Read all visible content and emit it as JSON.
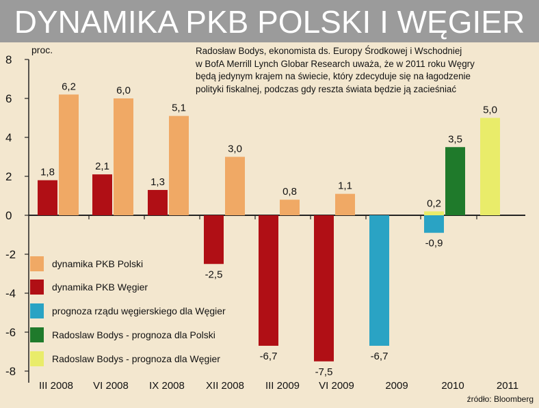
{
  "title": "DYNAMIKA PKB POLSKI I WĘGIER",
  "note": "Radosław Bodys, ekonomista ds. Europy Środkowej i Wschodniej\nw BofA Merrill Lynch Globar Research uważa, że w 2011 roku Węgry\nbędą jedynym krajem na świecie, który zdecyduje się na łagodzenie\npolityki fiskalnej, podczas gdy reszta świata będzie ją zacieśniać",
  "source": "źródło: Bloomberg",
  "colors": {
    "pl": "#f0a965",
    "hu": "#b00f15",
    "hu_gov": "#2aa3c4",
    "bodys_pl": "#1f7a2b",
    "bodys_hu": "#e9ec6a",
    "background": "#f3e7cf",
    "title_bar": "#9b9b9b"
  },
  "chart_data": {
    "type": "bar",
    "ylabel": "proc.",
    "ylim": [
      -8,
      8
    ],
    "yticks": [
      "8",
      "6",
      "4",
      "2",
      "0",
      "-2",
      "-4",
      "-6",
      "-8"
    ],
    "categories": [
      "III 2008",
      "VI 2008",
      "IX 2008",
      "XII 2008",
      "III 2009",
      "VI 2009",
      "2009",
      "2010",
      "2011"
    ],
    "series": [
      {
        "name": "dynamika PKB Polski",
        "key": "pl",
        "values": [
          6.2,
          6.0,
          5.1,
          3.0,
          0.8,
          1.1,
          null,
          null,
          null
        ],
        "labels": [
          "6,2",
          "6,0",
          "5,1",
          "3,0",
          "0,8",
          "1,1",
          "",
          "",
          ""
        ]
      },
      {
        "name": "dynamika PKB Węgier",
        "key": "hu",
        "values": [
          1.8,
          2.1,
          1.3,
          -2.5,
          -6.7,
          -7.5,
          null,
          null,
          null
        ],
        "labels": [
          "1,8",
          "2,1",
          "1,3",
          "-2,5",
          "-6,7",
          "-7,5",
          "",
          "",
          ""
        ]
      },
      {
        "name": "prognoza rządu węgierskiego dla Węgier",
        "key": "hu_gov",
        "values": [
          null,
          null,
          null,
          null,
          null,
          null,
          -6.7,
          -0.9,
          null
        ],
        "labels": [
          "",
          "",
          "",
          "",
          "",
          "",
          "-6,7",
          "-0,9",
          ""
        ]
      },
      {
        "name": "Radoslaw Bodys - prognoza dla Polski",
        "key": "bodys_pl",
        "values": [
          null,
          null,
          null,
          null,
          null,
          null,
          null,
          3.5,
          null
        ],
        "labels": [
          "",
          "",
          "",
          "",
          "",
          "",
          "",
          "3,5",
          ""
        ]
      },
      {
        "name": "Radoslaw Bodys - prognoza dla Węgier",
        "key": "bodys_hu",
        "values": [
          null,
          null,
          null,
          null,
          null,
          null,
          null,
          0.2,
          5.0
        ],
        "labels": [
          "",
          "",
          "",
          "",
          "",
          "",
          "",
          "0,2",
          "5,0"
        ]
      }
    ],
    "legend_placement": "bottom-left",
    "grid": false
  }
}
